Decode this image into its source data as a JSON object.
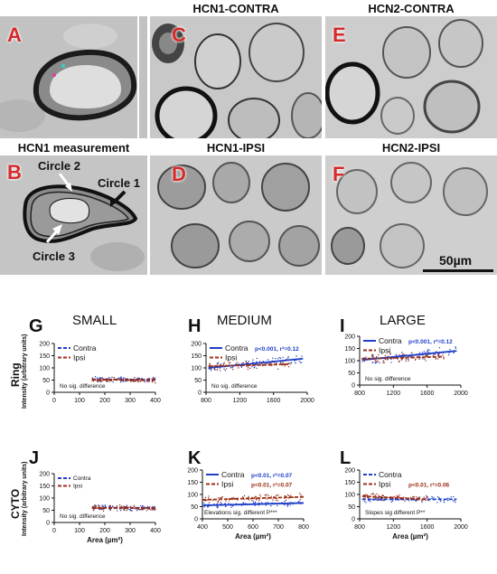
{
  "figure": {
    "panels": [
      {
        "letter": "A",
        "title": ""
      },
      {
        "letter": "B",
        "title": "HCN1 measurement"
      },
      {
        "letter": "C",
        "title": "HCN1-CONTRA"
      },
      {
        "letter": "D",
        "title": "HCN1-IPSI"
      },
      {
        "letter": "E",
        "title": "HCN2-CONTRA"
      },
      {
        "letter": "F",
        "title": "HCN2-IPSI"
      }
    ],
    "circle_labels": {
      "c1": "Circle 1",
      "c2": "Circle 2",
      "c3": "Circle 3"
    },
    "scale_bar": "50µm",
    "row_labels": {
      "ring": "Ring",
      "cyto": "CYTO",
      "ylabel": "Intensity (arbitrary units)"
    },
    "colors": {
      "contra": "#1f3fc8",
      "ipsi": "#9b2d14",
      "letter_red": "#d42a2a"
    }
  },
  "chart_data": [
    {
      "letter": "G",
      "title": "SMALL",
      "type": "scatter",
      "xlabel": "",
      "xlim": [
        0,
        400
      ],
      "ylim": [
        0,
        200
      ],
      "xticks": [
        0,
        100,
        200,
        300,
        400
      ],
      "yticks": [
        0,
        50,
        100,
        150,
        200
      ],
      "xtick_labels": [
        "0",
        "100",
        "200",
        "300",
        "400"
      ],
      "ytick_labels": [
        "0",
        "50",
        "100",
        "150",
        "200"
      ],
      "series": [
        {
          "name": "Contra",
          "fit": [
            [
              150,
              53
            ],
            [
              400,
              52
            ]
          ],
          "x_range": [
            150,
            400
          ],
          "y_center": 53,
          "y_spread": 12
        },
        {
          "name": "Ipsi",
          "fit": [
            [
              150,
              52
            ],
            [
              400,
              50
            ]
          ],
          "x_range": [
            150,
            400
          ],
          "y_center": 50,
          "y_spread": 12
        }
      ],
      "stats": [],
      "note": "No sig. difference",
      "legend_style": "normal"
    },
    {
      "letter": "H",
      "title": "MEDIUM",
      "type": "scatter",
      "xlabel": "",
      "xlim": [
        800,
        2000
      ],
      "ylim": [
        0,
        200
      ],
      "xticks": [
        800,
        1200,
        1600,
        2000
      ],
      "yticks": [
        0,
        50,
        100,
        150,
        200
      ],
      "xtick_labels": [
        "800",
        "1200",
        "1600",
        "2000"
      ],
      "ytick_labels": [
        "0",
        "50",
        "100",
        "150",
        "200"
      ],
      "series": [
        {
          "name": "Contra",
          "fit": [
            [
              830,
              100
            ],
            [
              1950,
              138
            ]
          ],
          "x_range": [
            830,
            1950
          ],
          "y_center": 115,
          "y_spread": 22
        },
        {
          "name": "Ipsi",
          "fit": [
            [
              830,
              107
            ],
            [
              1800,
              115
            ]
          ],
          "x_range": [
            830,
            1800
          ],
          "y_center": 112,
          "y_spread": 20
        }
      ],
      "stats": [
        {
          "text": "p<0.001, r²=0.12",
          "series": 0
        }
      ],
      "note": "No sig. difference",
      "legend_style": "normal"
    },
    {
      "letter": "I",
      "title": "LARGE",
      "type": "scatter",
      "xlabel": "",
      "xlim": [
        800,
        2000
      ],
      "ylim": [
        0,
        200
      ],
      "xticks": [
        800,
        1200,
        1600,
        2000
      ],
      "yticks": [
        0,
        50,
        100,
        150,
        200
      ],
      "xtick_labels": [
        "800",
        "1200",
        "1600",
        "2000"
      ],
      "ytick_labels": [
        "0",
        "50",
        "100",
        "150",
        "200"
      ],
      "series": [
        {
          "name": "Contra",
          "fit": [
            [
              830,
              103
            ],
            [
              1950,
              140
            ]
          ],
          "x_range": [
            830,
            1950
          ],
          "y_center": 115,
          "y_spread": 25
        },
        {
          "name": "Ipsi",
          "fit": [
            [
              830,
              108
            ],
            [
              1800,
              116
            ]
          ],
          "x_range": [
            830,
            1800
          ],
          "y_center": 112,
          "y_spread": 22
        }
      ],
      "stats": [
        {
          "text": "p<0.001, r²=0.12",
          "series": 0
        }
      ],
      "note": "No sig. difference",
      "legend_style": "normal"
    },
    {
      "letter": "J",
      "title": "",
      "type": "scatter",
      "xlabel": "Area (µm²)",
      "xlim": [
        0,
        400
      ],
      "ylim": [
        0,
        200
      ],
      "xticks": [
        0,
        100,
        200,
        300,
        400
      ],
      "yticks": [
        0,
        50,
        100,
        150,
        200
      ],
      "xtick_labels": [
        "0",
        "100",
        "200",
        "300",
        "400"
      ],
      "ytick_labels": [
        "0",
        "50",
        "100",
        "150",
        "200"
      ],
      "series": [
        {
          "name": "Contra",
          "fit": [
            [
              150,
              60
            ],
            [
              400,
              60
            ]
          ],
          "x_range": [
            150,
            400
          ],
          "y_center": 60,
          "y_spread": 13
        },
        {
          "name": "Ipsi",
          "fit": [
            [
              150,
              60
            ],
            [
              400,
              58
            ]
          ],
          "x_range": [
            150,
            400
          ],
          "y_center": 59,
          "y_spread": 13
        }
      ],
      "stats": [],
      "note": "No sig. difference",
      "legend_style": "small"
    },
    {
      "letter": "K",
      "title": "",
      "type": "scatter",
      "xlabel": "Area (µm²)",
      "xlim": [
        400,
        800
      ],
      "ylim": [
        0,
        200
      ],
      "xticks": [
        400,
        500,
        600,
        700,
        800
      ],
      "yticks": [
        0,
        50,
        100,
        150,
        200
      ],
      "xtick_labels": [
        "400",
        "500",
        "600",
        "700",
        "800"
      ],
      "ytick_labels": [
        "0",
        "50",
        "100",
        "150",
        "200"
      ],
      "series": [
        {
          "name": "Contra",
          "fit": [
            [
              400,
              55
            ],
            [
              800,
              65
            ]
          ],
          "x_range": [
            400,
            800
          ],
          "y_center": 60,
          "y_spread": 13
        },
        {
          "name": "Ipsi",
          "fit": [
            [
              400,
              78
            ],
            [
              800,
              90
            ]
          ],
          "x_range": [
            400,
            800
          ],
          "y_center": 84,
          "y_spread": 17
        }
      ],
      "stats": [
        {
          "text": "p<0.01, r²=0.07",
          "series": 0
        },
        {
          "text": "p<0.01, r²=0.07",
          "series": 1
        }
      ],
      "note": "Elevations sig. different P***",
      "legend_style": "normal"
    },
    {
      "letter": "L",
      "title": "",
      "type": "scatter",
      "xlabel": "Area (µm²)",
      "xlim": [
        800,
        2000
      ],
      "ylim": [
        0,
        200
      ],
      "xticks": [
        800,
        1200,
        1600,
        2000
      ],
      "yticks": [
        0,
        50,
        100,
        150,
        200
      ],
      "xtick_labels": [
        "800",
        "1200",
        "1600",
        "2000"
      ],
      "ytick_labels": [
        "0",
        "50",
        "100",
        "150",
        "200"
      ],
      "series": [
        {
          "name": "Contra",
          "fit": [
            [
              830,
              80
            ],
            [
              1950,
              80
            ]
          ],
          "x_range": [
            830,
            1950
          ],
          "y_center": 80,
          "y_spread": 14
        },
        {
          "name": "Ipsi",
          "fit": [
            [
              830,
              93
            ],
            [
              1600,
              80
            ]
          ],
          "x_range": [
            830,
            1600
          ],
          "y_center": 87,
          "y_spread": 15
        }
      ],
      "stats": [
        {
          "text": "p<0.01, r²=0.06",
          "series": 1
        }
      ],
      "note": "Slopes sig different P**",
      "legend_style": "normal"
    }
  ]
}
